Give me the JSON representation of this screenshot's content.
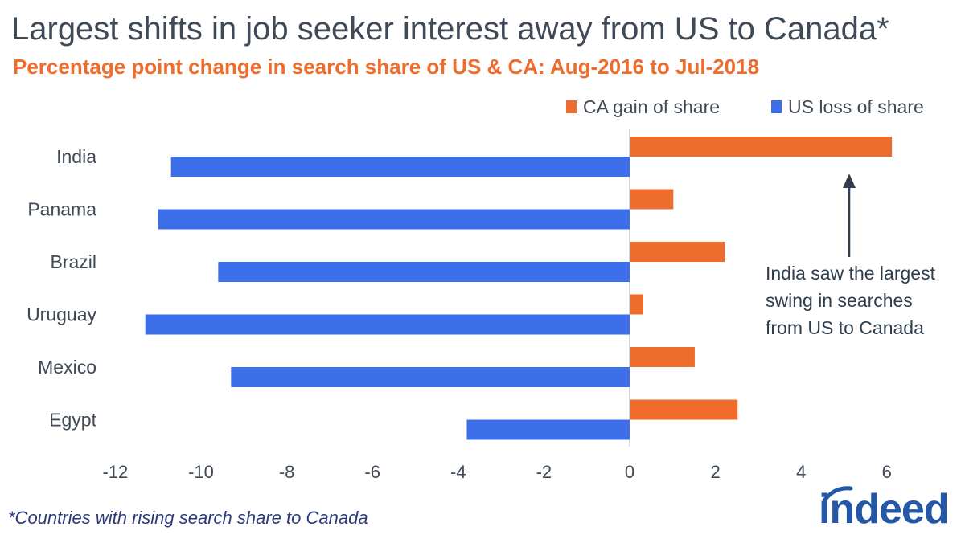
{
  "chart_data": {
    "type": "bar",
    "orientation": "horizontal",
    "title": "Largest shifts in job seeker interest away from US to Canada*",
    "subtitle": "Percentage point change in search share of US & CA: Aug-2016 to Jul-2018",
    "xlabel": "",
    "ylabel": "",
    "xlim": [
      -12,
      6
    ],
    "xticks": [
      "-12",
      "-10",
      "-8",
      "-6",
      "-4",
      "-2",
      "0",
      "2",
      "4",
      "6"
    ],
    "categories": [
      "India",
      "Panama",
      "Brazil",
      "Uruguay",
      "Mexico",
      "Egypt"
    ],
    "series": [
      {
        "name": "CA gain of share",
        "color": "#ee6d2d",
        "values": [
          6.1,
          1.0,
          2.2,
          0.3,
          1.5,
          2.5
        ]
      },
      {
        "name": "US loss of share",
        "color": "#3b6ee8",
        "values": [
          -10.7,
          -11.0,
          -9.6,
          -11.3,
          -9.3,
          -3.8
        ]
      }
    ],
    "legend_position": "top-right",
    "grid": false,
    "annotation": {
      "lines": [
        "India saw the largest",
        "swing in searches",
        "from US to Canada"
      ],
      "points_to": "India"
    }
  },
  "footnote": "*Countries with rising search share to Canada",
  "logo": {
    "text": "indeed",
    "color": "#2557a7"
  }
}
